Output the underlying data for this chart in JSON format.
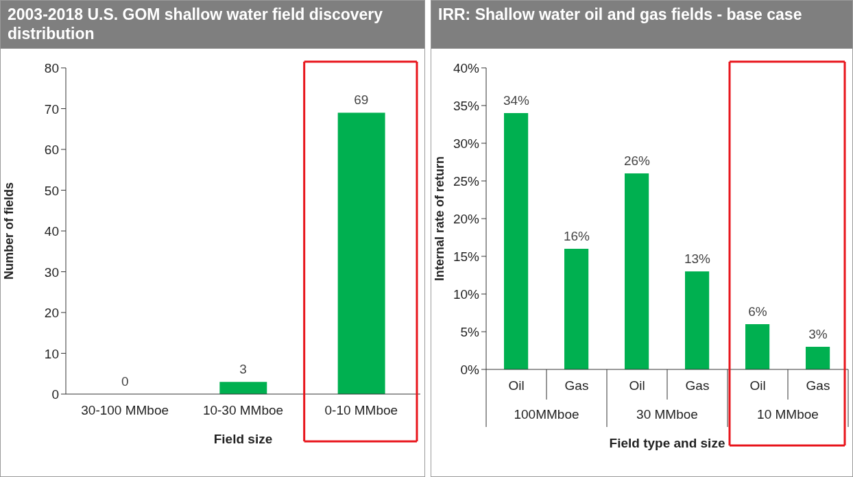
{
  "chart_data": [
    {
      "type": "bar",
      "title": "2003-2018 U.S. GOM shallow water field discovery distribution",
      "xlabel": "Field size",
      "ylabel": "Number of fields",
      "categories": [
        "30-100 MMboe",
        "10-30 MMboe",
        "0-10 MMboe"
      ],
      "values": [
        0,
        3,
        69
      ],
      "color": "#00b050",
      "ylim": [
        0,
        80
      ],
      "yticks": [
        0,
        10,
        20,
        30,
        40,
        50,
        60,
        70,
        80
      ],
      "data_labels": true,
      "grid": false,
      "legend": false
    },
    {
      "type": "bar",
      "title": "IRR: Shallow water oil and gas fields - base case",
      "xlabel": "Field type and size",
      "ylabel": "Internal rate of return",
      "categories": [
        "Oil",
        "Gas",
        "Oil",
        "Gas",
        "Oil",
        "Gas"
      ],
      "values": [
        34,
        16,
        26,
        13,
        6,
        3
      ],
      "color": "#00b050",
      "value_labels": [
        "34%",
        "16%",
        "26%",
        "13%",
        "6%",
        "3%"
      ],
      "annotations": [
        "100MMboe",
        "30 MMboe",
        "10 MMboe"
      ],
      "ylim": [
        0,
        40
      ],
      "yticks": [
        {
          "value": 0,
          "label": "0%"
        },
        {
          "value": 5,
          "label": "5%"
        },
        {
          "value": 10,
          "label": "10%"
        },
        {
          "value": 15,
          "label": "15%"
        },
        {
          "value": 20,
          "label": "20%"
        },
        {
          "value": 25,
          "label": "25%"
        },
        {
          "value": 30,
          "label": "30%"
        },
        {
          "value": 35,
          "label": "35%"
        },
        {
          "value": 40,
          "label": "40%"
        }
      ],
      "grid": false,
      "legend": false
    }
  ]
}
